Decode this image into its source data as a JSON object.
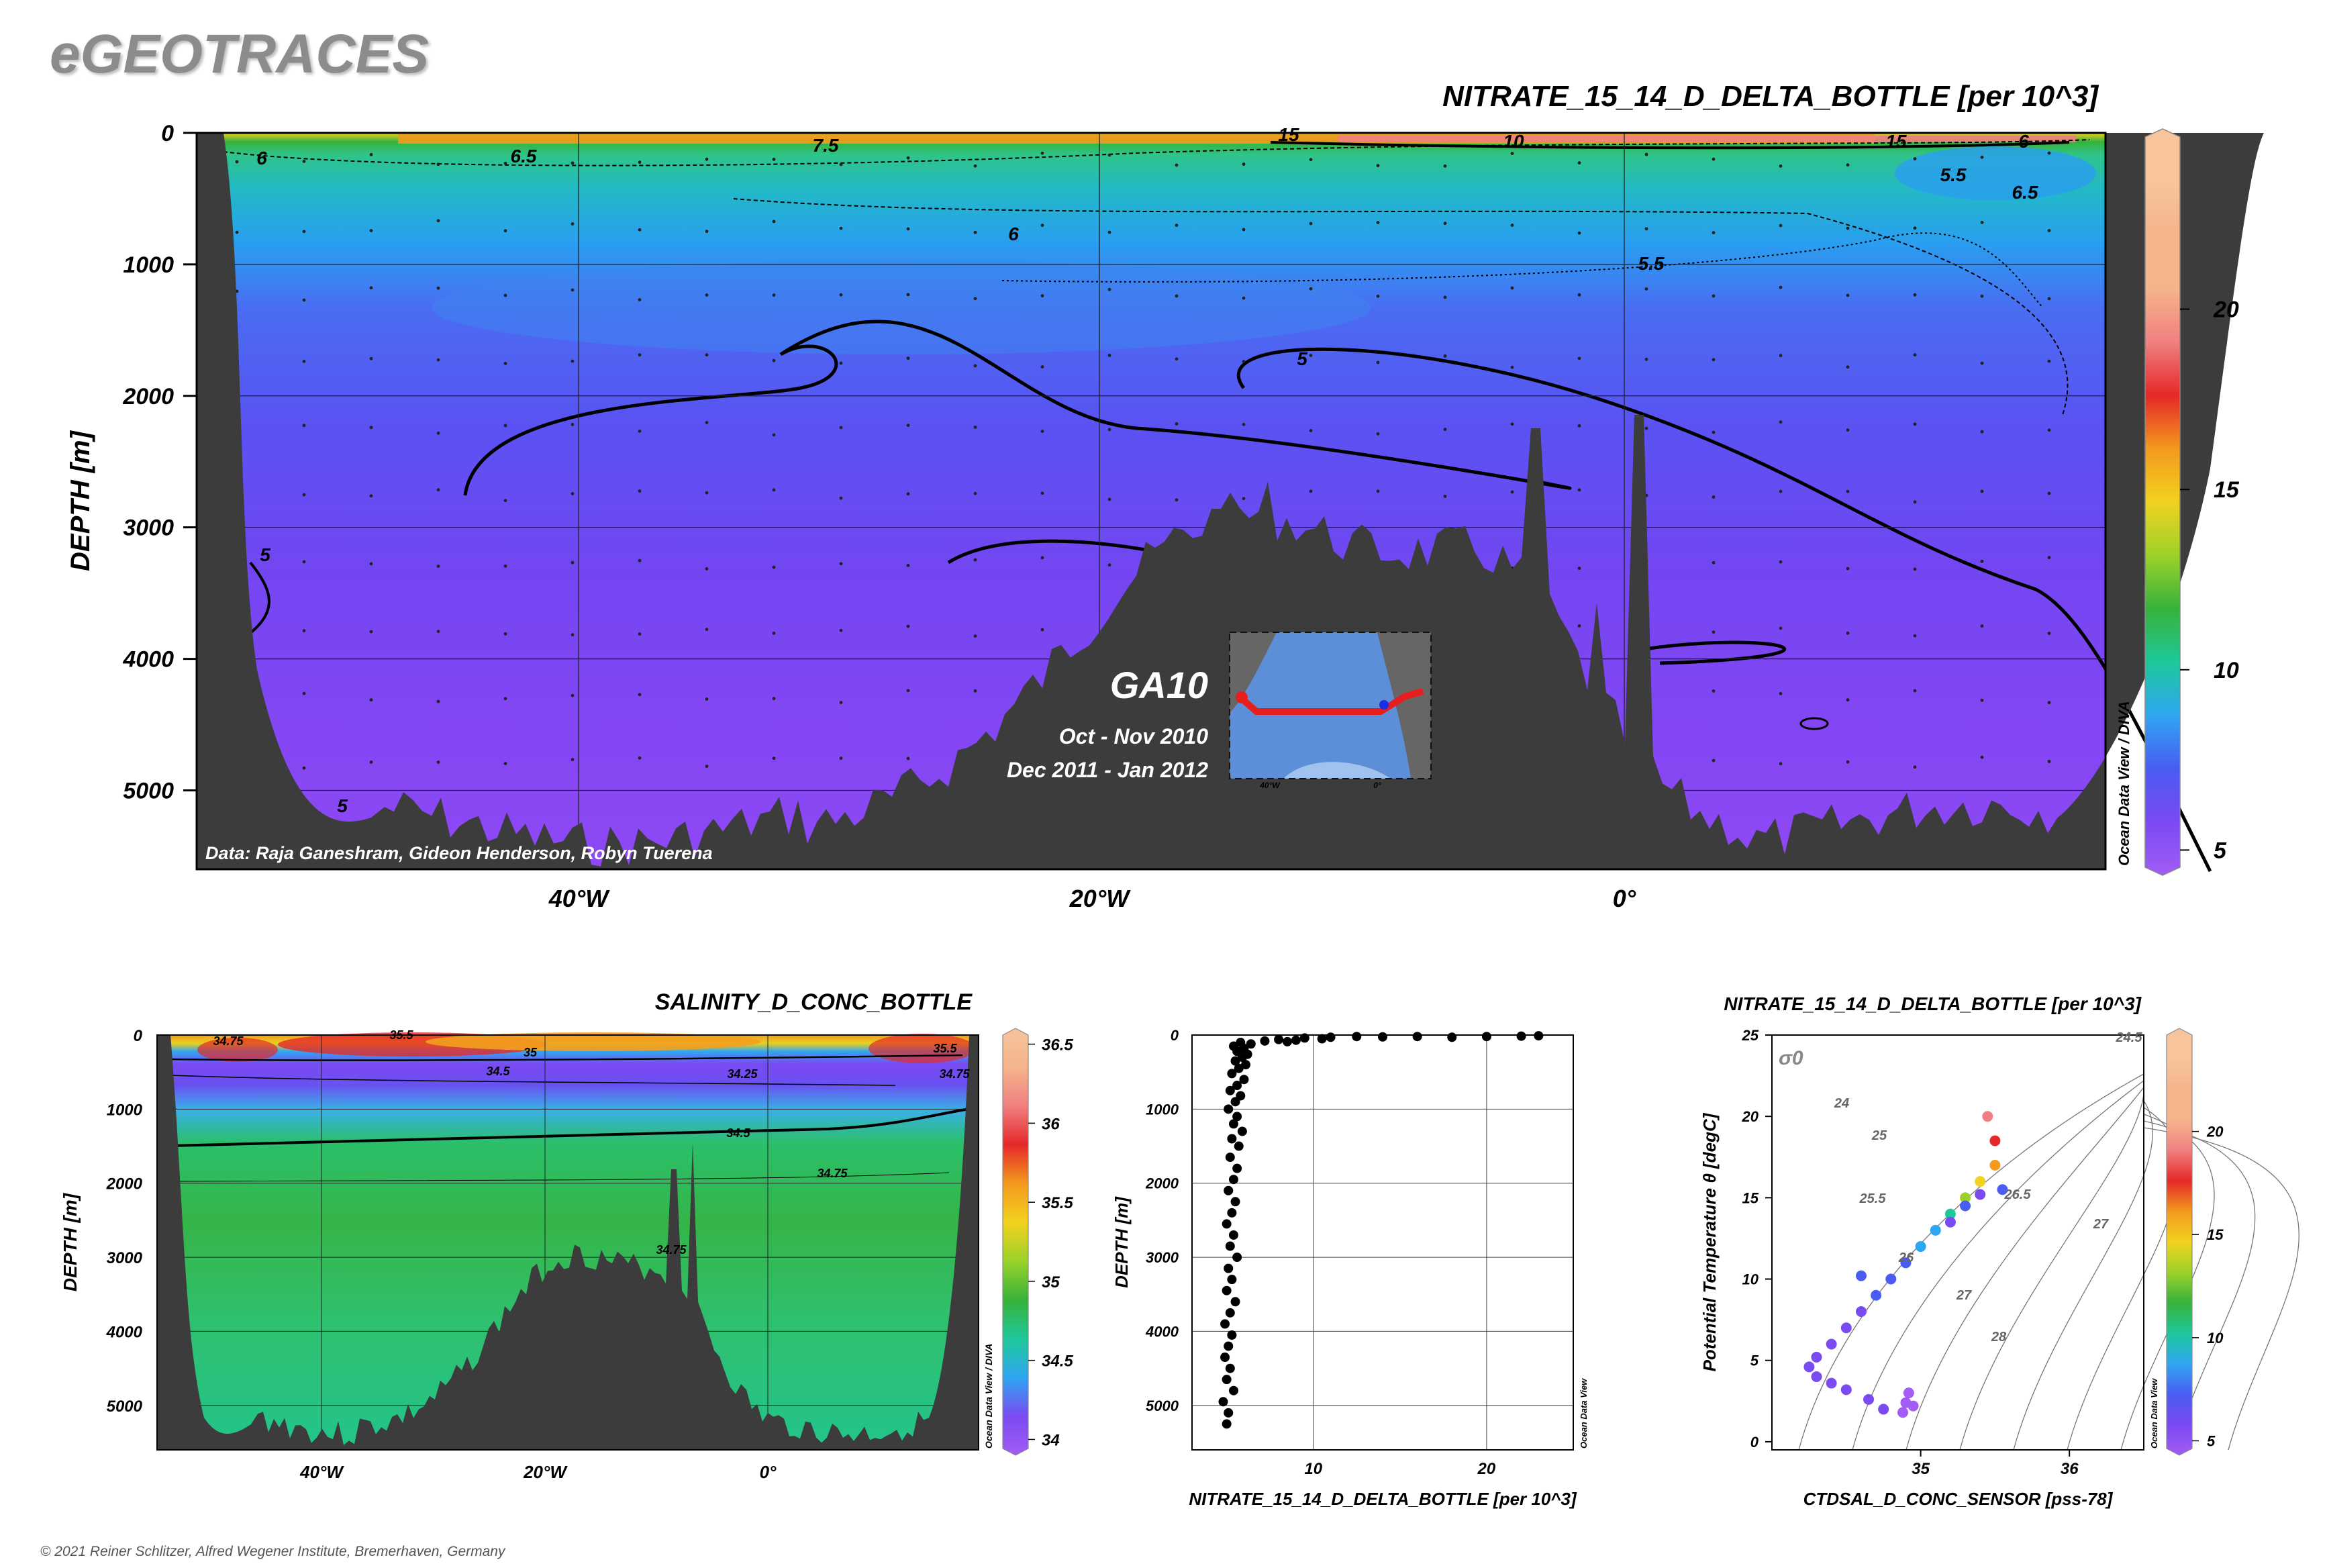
{
  "header": {
    "logo": "eGEOTRACES",
    "copyright": "© 2021 Reiner Schlitzer, Alfred Wegener Institute, Bremerhaven, Germany"
  },
  "colors": {
    "land": "#3c3c3c",
    "palette": [
      "#a35cf5",
      "#7a4af2",
      "#4a5cf2",
      "#2fa6f2",
      "#1ec89a",
      "#37b23a",
      "#9bd22a",
      "#f2d21e",
      "#f29a1e",
      "#e62828",
      "#f08080",
      "#f5b48c",
      "#f7c49c"
    ]
  },
  "chart_data": [
    {
      "type": "heatmap",
      "id": "main",
      "title": "NITRATE_15_14_D_DELTA_BOTTLE [per 10^3]",
      "ylabel": "DEPTH [m]",
      "xlabel": "",
      "x_ticks": [
        "40°W",
        "20°W",
        "0°"
      ],
      "y_ticks": [
        "0",
        "1000",
        "2000",
        "3000",
        "4000",
        "5000"
      ],
      "ylim": [
        0,
        5600
      ],
      "colorbar": {
        "ticks": [
          "5",
          "10",
          "15",
          "20"
        ],
        "range": [
          4.3,
          25
        ]
      },
      "contour_labels": [
        "6",
        "6.5",
        "7.5",
        "15",
        "10",
        "15",
        "6",
        "5.5",
        "6.5",
        "6",
        "5.5",
        "5",
        "5",
        "5"
      ],
      "annotations": {
        "section": "GA10",
        "period1": "Oct - Nov 2010",
        "period2": "Dec 2011 - Jan 2012",
        "credit": "Data: Raja Ganeshram, Gideon Henderson, Robyn Tuerena",
        "odv": "Ocean Data View / DIVA",
        "inset_ticks": [
          "40°W",
          "0°"
        ]
      }
    },
    {
      "type": "heatmap",
      "id": "salinity",
      "title": "SALINITY_D_CONC_BOTTLE",
      "ylabel": "DEPTH [m]",
      "xlabel": "",
      "x_ticks": [
        "40°W",
        "20°W",
        "0°"
      ],
      "y_ticks": [
        "0",
        "1000",
        "2000",
        "3000",
        "4000",
        "5000"
      ],
      "ylim": [
        0,
        5600
      ],
      "colorbar": {
        "ticks": [
          "36.5",
          "36",
          "35.5",
          "35",
          "34.5",
          "34"
        ],
        "range": [
          33.9,
          36.6
        ]
      },
      "contour_labels": [
        "34.75",
        "35",
        "34.5",
        "34.25",
        "35.5",
        "34.5",
        "34.75",
        "34.75",
        "35.5",
        "34.75"
      ],
      "odv": "Ocean Data View / DIVA"
    },
    {
      "type": "scatter",
      "id": "profile",
      "title": "",
      "xlabel": "NITRATE_15_14_D_DELTA_BOTTLE [per 10^3]",
      "ylabel": "DEPTH [m]",
      "x_ticks": [
        "10",
        "20"
      ],
      "y_ticks": [
        "0",
        "1000",
        "2000",
        "3000",
        "4000",
        "5000"
      ],
      "xlim": [
        3,
        25
      ],
      "ylim": [
        0,
        5600
      ],
      "odv": "Ocean Data View",
      "points": [
        [
          5.8,
          100
        ],
        [
          6.4,
          120
        ],
        [
          7.2,
          80
        ],
        [
          8.0,
          60
        ],
        [
          9.5,
          40
        ],
        [
          11,
          30
        ],
        [
          12.5,
          20
        ],
        [
          14,
          25
        ],
        [
          16,
          20
        ],
        [
          18,
          30
        ],
        [
          20,
          20
        ],
        [
          22,
          15
        ],
        [
          23,
          10
        ],
        [
          10.5,
          50
        ],
        [
          9,
          70
        ],
        [
          8.5,
          90
        ],
        [
          5.4,
          150
        ],
        [
          6.0,
          180
        ],
        [
          5.6,
          220
        ],
        [
          6.2,
          260
        ],
        [
          5.9,
          300
        ],
        [
          5.5,
          350
        ],
        [
          6.1,
          400
        ],
        [
          5.7,
          450
        ],
        [
          5.3,
          520
        ],
        [
          6.0,
          600
        ],
        [
          5.6,
          680
        ],
        [
          5.2,
          750
        ],
        [
          5.8,
          820
        ],
        [
          5.5,
          900
        ],
        [
          5.1,
          1000
        ],
        [
          5.6,
          1100
        ],
        [
          5.4,
          1200
        ],
        [
          5.9,
          1300
        ],
        [
          5.3,
          1400
        ],
        [
          5.7,
          1500
        ],
        [
          5.2,
          1650
        ],
        [
          5.6,
          1800
        ],
        [
          5.4,
          1950
        ],
        [
          5.1,
          2100
        ],
        [
          5.5,
          2250
        ],
        [
          5.3,
          2400
        ],
        [
          5.0,
          2550
        ],
        [
          5.4,
          2700
        ],
        [
          5.2,
          2850
        ],
        [
          5.6,
          3000
        ],
        [
          5.1,
          3150
        ],
        [
          5.3,
          3300
        ],
        [
          5.0,
          3450
        ],
        [
          5.5,
          3600
        ],
        [
          5.2,
          3750
        ],
        [
          4.9,
          3900
        ],
        [
          5.3,
          4050
        ],
        [
          5.1,
          4200
        ],
        [
          4.9,
          4350
        ],
        [
          5.2,
          4500
        ],
        [
          5.0,
          4650
        ],
        [
          5.4,
          4800
        ],
        [
          4.8,
          4950
        ],
        [
          5.1,
          5100
        ],
        [
          5.0,
          5250
        ]
      ]
    },
    {
      "type": "scatter",
      "id": "ts",
      "title": "NITRATE_15_14_D_DELTA_BOTTLE [per 10^3]",
      "xlabel": "CTDSAL_D_CONC_SENSOR [pss-78]",
      "ylabel": "Potential Temperature θ [degC]",
      "x_ticks": [
        "35",
        "36"
      ],
      "y_ticks": [
        "0",
        "5",
        "10",
        "15",
        "20",
        "25"
      ],
      "xlim": [
        34.0,
        36.5
      ],
      "ylim": [
        -0.5,
        25
      ],
      "sigma_label": "σ0",
      "isopycnal_labels": [
        "24.5",
        "24",
        "25",
        "25.5",
        "26",
        "26.5",
        "27",
        "27",
        "28"
      ],
      "colorbar": {
        "ticks": [
          "5",
          "10",
          "15",
          "20"
        ],
        "range": [
          4.3,
          25
        ]
      },
      "odv": "Ocean Data View",
      "points": [
        [
          34.92,
          3.0,
          5.0
        ],
        [
          34.9,
          2.4,
          4.8
        ],
        [
          34.88,
          1.8,
          4.9
        ],
        [
          34.95,
          2.2,
          5.0
        ],
        [
          34.75,
          2.0,
          5.2
        ],
        [
          34.65,
          2.6,
          5.4
        ],
        [
          34.5,
          3.2,
          5.5
        ],
        [
          34.4,
          3.6,
          5.6
        ],
        [
          34.3,
          4.0,
          5.6
        ],
        [
          34.25,
          4.6,
          5.8
        ],
        [
          34.3,
          5.2,
          6.0
        ],
        [
          34.4,
          6.0,
          6.2
        ],
        [
          34.5,
          7.0,
          6.4
        ],
        [
          34.6,
          8.0,
          6.6
        ],
        [
          34.7,
          9.0,
          7.0
        ],
        [
          34.8,
          10.0,
          7.4
        ],
        [
          34.9,
          11.0,
          8.0
        ],
        [
          35.0,
          12.0,
          9.0
        ],
        [
          35.1,
          13.0,
          10.0
        ],
        [
          35.2,
          14.0,
          12.0
        ],
        [
          35.3,
          15.0,
          14.0
        ],
        [
          35.4,
          16.0,
          16.0
        ],
        [
          35.5,
          17.0,
          18.0
        ],
        [
          35.5,
          18.5,
          20.0
        ],
        [
          35.45,
          20.0,
          22.0
        ],
        [
          35.3,
          14.5,
          7.0
        ],
        [
          35.4,
          15.2,
          6.0
        ],
        [
          35.55,
          15.5,
          7.0
        ],
        [
          35.2,
          13.5,
          6.5
        ],
        [
          34.6,
          10.2,
          8.5
        ]
      ]
    }
  ]
}
